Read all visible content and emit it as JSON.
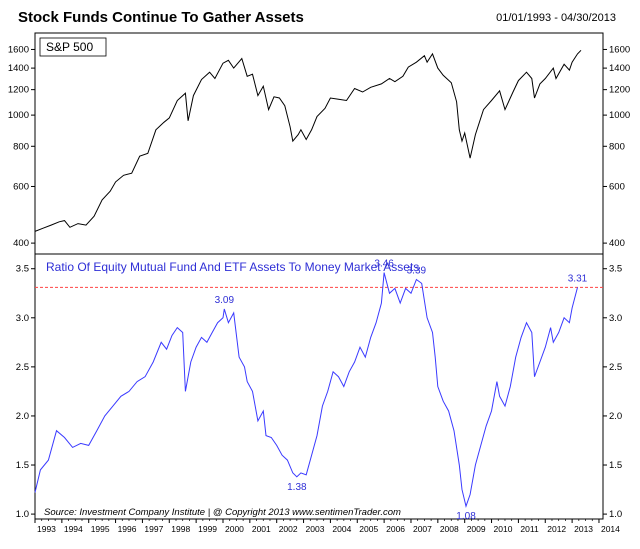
{
  "header": {
    "title": "Stock Funds Continue To Gather Assets",
    "date_range": "01/01/1993 - 04/30/2013"
  },
  "source_note": "Source:  Investment Company Institute   |   @ Copyright 2013   www.sentimenTrader.com",
  "colors": {
    "sp500_line": "#000000",
    "ratio_line": "#3a3aff",
    "reference_line": "#ff4444",
    "annotation": "#2f2fd6"
  },
  "chart_data": [
    {
      "type": "line",
      "title": "S&P 500",
      "yscale": "log",
      "ylim": [
        370,
        1800
      ],
      "yticks": [
        400,
        600,
        800,
        1000,
        1200,
        1400,
        1600
      ],
      "xlim": [
        1993.0,
        2014.15
      ],
      "series": [
        {
          "values": [
            [
              1993.0,
              435
            ],
            [
              1993.3,
              445
            ],
            [
              1993.6,
              455
            ],
            [
              1993.9,
              466
            ],
            [
              1994.1,
              470
            ],
            [
              1994.3,
              448
            ],
            [
              1994.6,
              460
            ],
            [
              1994.9,
              455
            ],
            [
              1995.2,
              485
            ],
            [
              1995.5,
              545
            ],
            [
              1995.8,
              580
            ],
            [
              1996.0,
              620
            ],
            [
              1996.3,
              650
            ],
            [
              1996.6,
              660
            ],
            [
              1996.9,
              745
            ],
            [
              1997.2,
              760
            ],
            [
              1997.5,
              900
            ],
            [
              1997.8,
              950
            ],
            [
              1998.0,
              980
            ],
            [
              1998.3,
              1110
            ],
            [
              1998.6,
              1170
            ],
            [
              1998.7,
              960
            ],
            [
              1998.9,
              1150
            ],
            [
              1999.2,
              1290
            ],
            [
              1999.5,
              1360
            ],
            [
              1999.7,
              1300
            ],
            [
              2000.0,
              1450
            ],
            [
              2000.2,
              1480
            ],
            [
              2000.4,
              1400
            ],
            [
              2000.7,
              1500
            ],
            [
              2000.9,
              1320
            ],
            [
              2001.1,
              1340
            ],
            [
              2001.3,
              1150
            ],
            [
              2001.5,
              1230
            ],
            [
              2001.7,
              1040
            ],
            [
              2001.9,
              1140
            ],
            [
              2002.1,
              1130
            ],
            [
              2002.3,
              1070
            ],
            [
              2002.5,
              920
            ],
            [
              2002.6,
              830
            ],
            [
              2002.8,
              870
            ],
            [
              2002.9,
              900
            ],
            [
              2003.1,
              840
            ],
            [
              2003.3,
              900
            ],
            [
              2003.5,
              990
            ],
            [
              2003.8,
              1050
            ],
            [
              2004.0,
              1130
            ],
            [
              2004.3,
              1120
            ],
            [
              2004.6,
              1110
            ],
            [
              2004.9,
              1210
            ],
            [
              2005.2,
              1180
            ],
            [
              2005.5,
              1220
            ],
            [
              2005.9,
              1250
            ],
            [
              2006.2,
              1300
            ],
            [
              2006.4,
              1270
            ],
            [
              2006.7,
              1320
            ],
            [
              2006.9,
              1410
            ],
            [
              2007.2,
              1460
            ],
            [
              2007.5,
              1530
            ],
            [
              2007.6,
              1460
            ],
            [
              2007.8,
              1550
            ],
            [
              2008.0,
              1400
            ],
            [
              2008.2,
              1330
            ],
            [
              2008.5,
              1260
            ],
            [
              2008.7,
              1100
            ],
            [
              2008.8,
              900
            ],
            [
              2008.9,
              830
            ],
            [
              2009.0,
              880
            ],
            [
              2009.2,
              735
            ],
            [
              2009.4,
              870
            ],
            [
              2009.7,
              1040
            ],
            [
              2010.0,
              1110
            ],
            [
              2010.3,
              1190
            ],
            [
              2010.5,
              1040
            ],
            [
              2010.8,
              1180
            ],
            [
              2011.0,
              1280
            ],
            [
              2011.3,
              1360
            ],
            [
              2011.5,
              1300
            ],
            [
              2011.6,
              1130
            ],
            [
              2011.8,
              1250
            ],
            [
              2012.0,
              1300
            ],
            [
              2012.3,
              1400
            ],
            [
              2012.4,
              1300
            ],
            [
              2012.7,
              1440
            ],
            [
              2012.9,
              1380
            ],
            [
              2013.0,
              1460
            ],
            [
              2013.2,
              1550
            ],
            [
              2013.33,
              1590
            ]
          ]
        }
      ]
    },
    {
      "type": "line",
      "title": "Ratio Of Equity Mutual Fund And ETF Assets To Money Market Assets",
      "ylim": [
        0.95,
        3.65
      ],
      "yticks": [
        "1.0",
        "1.5",
        "2.0",
        "2.5",
        "3.0",
        "3.5"
      ],
      "xlim": [
        1993.0,
        2014.15
      ],
      "x_tick_labels": [
        "1993",
        "1994",
        "1995",
        "1996",
        "1997",
        "1998",
        "1999",
        "2000",
        "2001",
        "2002",
        "2003",
        "2004",
        "2005",
        "2006",
        "2007",
        "2008",
        "2009",
        "2010",
        "2011",
        "2012",
        "2013",
        "2014"
      ],
      "reference_line": 3.31,
      "annotations": [
        {
          "x": 2000.05,
          "y": 3.09,
          "text": "3.09"
        },
        {
          "x": 2002.75,
          "y": 1.38,
          "text": "1.38"
        },
        {
          "x": 2006.0,
          "y": 3.46,
          "text": "3.46"
        },
        {
          "x": 2007.2,
          "y": 3.39,
          "text": "3.39"
        },
        {
          "x": 2009.05,
          "y": 1.08,
          "text": "1.08"
        },
        {
          "x": 2013.2,
          "y": 3.31,
          "text": "3.31"
        }
      ],
      "series": [
        {
          "values": [
            [
              1993.0,
              1.22
            ],
            [
              1993.2,
              1.45
            ],
            [
              1993.5,
              1.55
            ],
            [
              1993.8,
              1.85
            ],
            [
              1994.1,
              1.78
            ],
            [
              1994.4,
              1.68
            ],
            [
              1994.7,
              1.72
            ],
            [
              1995.0,
              1.7
            ],
            [
              1995.3,
              1.85
            ],
            [
              1995.6,
              2.0
            ],
            [
              1995.9,
              2.1
            ],
            [
              1996.2,
              2.2
            ],
            [
              1996.5,
              2.25
            ],
            [
              1996.8,
              2.35
            ],
            [
              1997.1,
              2.4
            ],
            [
              1997.4,
              2.55
            ],
            [
              1997.7,
              2.75
            ],
            [
              1997.9,
              2.68
            ],
            [
              1998.1,
              2.82
            ],
            [
              1998.3,
              2.9
            ],
            [
              1998.5,
              2.85
            ],
            [
              1998.6,
              2.25
            ],
            [
              1998.8,
              2.55
            ],
            [
              1999.0,
              2.7
            ],
            [
              1999.2,
              2.8
            ],
            [
              1999.4,
              2.75
            ],
            [
              1999.6,
              2.85
            ],
            [
              1999.8,
              2.95
            ],
            [
              2000.0,
              3.0
            ],
            [
              2000.05,
              3.09
            ],
            [
              2000.2,
              2.95
            ],
            [
              2000.4,
              3.05
            ],
            [
              2000.6,
              2.6
            ],
            [
              2000.8,
              2.5
            ],
            [
              2000.9,
              2.35
            ],
            [
              2001.1,
              2.25
            ],
            [
              2001.3,
              1.95
            ],
            [
              2001.5,
              2.05
            ],
            [
              2001.6,
              1.8
            ],
            [
              2001.8,
              1.78
            ],
            [
              2002.0,
              1.7
            ],
            [
              2002.2,
              1.6
            ],
            [
              2002.4,
              1.55
            ],
            [
              2002.6,
              1.42
            ],
            [
              2002.75,
              1.38
            ],
            [
              2002.9,
              1.42
            ],
            [
              2003.1,
              1.4
            ],
            [
              2003.3,
              1.6
            ],
            [
              2003.5,
              1.8
            ],
            [
              2003.7,
              2.1
            ],
            [
              2003.9,
              2.25
            ],
            [
              2004.1,
              2.45
            ],
            [
              2004.3,
              2.4
            ],
            [
              2004.5,
              2.3
            ],
            [
              2004.7,
              2.45
            ],
            [
              2004.9,
              2.55
            ],
            [
              2005.1,
              2.7
            ],
            [
              2005.3,
              2.6
            ],
            [
              2005.5,
              2.8
            ],
            [
              2005.7,
              2.95
            ],
            [
              2005.9,
              3.15
            ],
            [
              2006.0,
              3.46
            ],
            [
              2006.2,
              3.25
            ],
            [
              2006.4,
              3.3
            ],
            [
              2006.6,
              3.15
            ],
            [
              2006.8,
              3.3
            ],
            [
              2007.0,
              3.25
            ],
            [
              2007.2,
              3.39
            ],
            [
              2007.4,
              3.35
            ],
            [
              2007.6,
              3.0
            ],
            [
              2007.8,
              2.85
            ],
            [
              2007.9,
              2.6
            ],
            [
              2008.0,
              2.3
            ],
            [
              2008.2,
              2.15
            ],
            [
              2008.4,
              2.05
            ],
            [
              2008.6,
              1.85
            ],
            [
              2008.8,
              1.5
            ],
            [
              2008.9,
              1.25
            ],
            [
              2009.05,
              1.08
            ],
            [
              2009.2,
              1.2
            ],
            [
              2009.4,
              1.5
            ],
            [
              2009.6,
              1.7
            ],
            [
              2009.8,
              1.9
            ],
            [
              2010.0,
              2.05
            ],
            [
              2010.2,
              2.35
            ],
            [
              2010.3,
              2.2
            ],
            [
              2010.5,
              2.1
            ],
            [
              2010.7,
              2.3
            ],
            [
              2010.9,
              2.6
            ],
            [
              2011.1,
              2.8
            ],
            [
              2011.3,
              2.95
            ],
            [
              2011.5,
              2.85
            ],
            [
              2011.6,
              2.4
            ],
            [
              2011.8,
              2.55
            ],
            [
              2012.0,
              2.7
            ],
            [
              2012.2,
              2.9
            ],
            [
              2012.3,
              2.75
            ],
            [
              2012.5,
              2.85
            ],
            [
              2012.7,
              3.0
            ],
            [
              2012.9,
              2.95
            ],
            [
              2013.0,
              3.1
            ],
            [
              2013.2,
              3.31
            ]
          ]
        }
      ]
    }
  ]
}
